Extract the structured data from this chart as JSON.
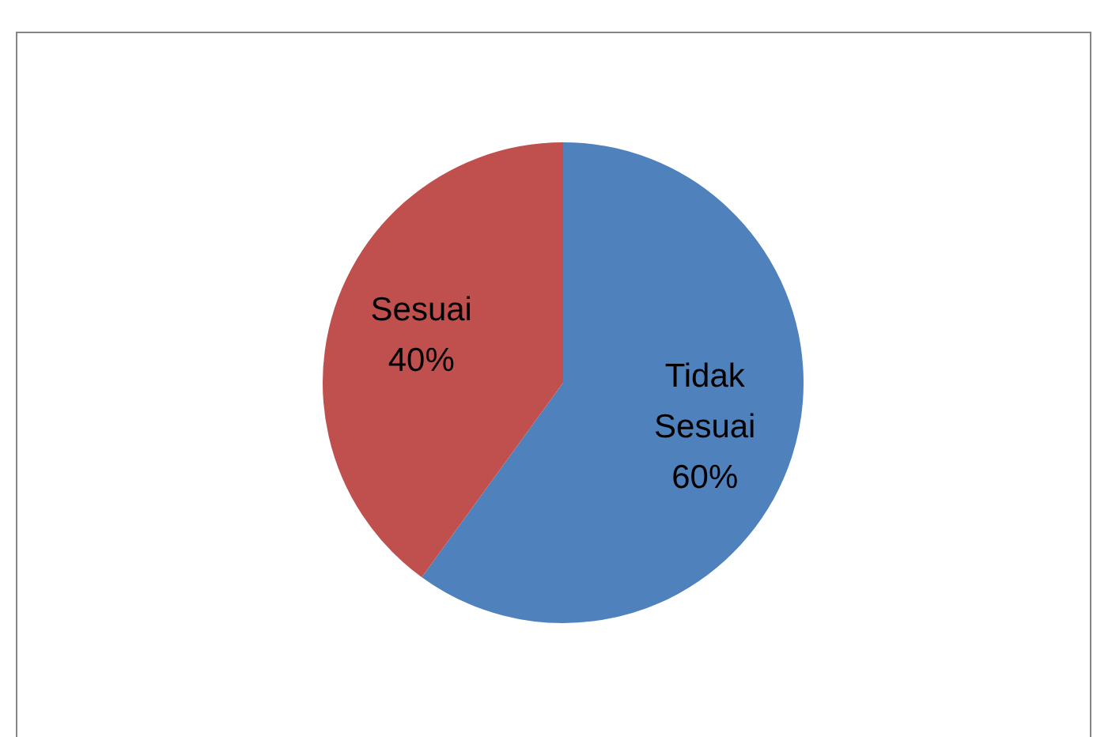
{
  "chart_data": {
    "type": "pie",
    "categories": [
      "Tidak Sesuai",
      "Sesuai"
    ],
    "values": [
      60,
      40
    ],
    "colors": [
      "#4f81bd",
      "#c0504d"
    ],
    "value_labels": [
      "60%",
      "40%"
    ],
    "legend": false
  }
}
